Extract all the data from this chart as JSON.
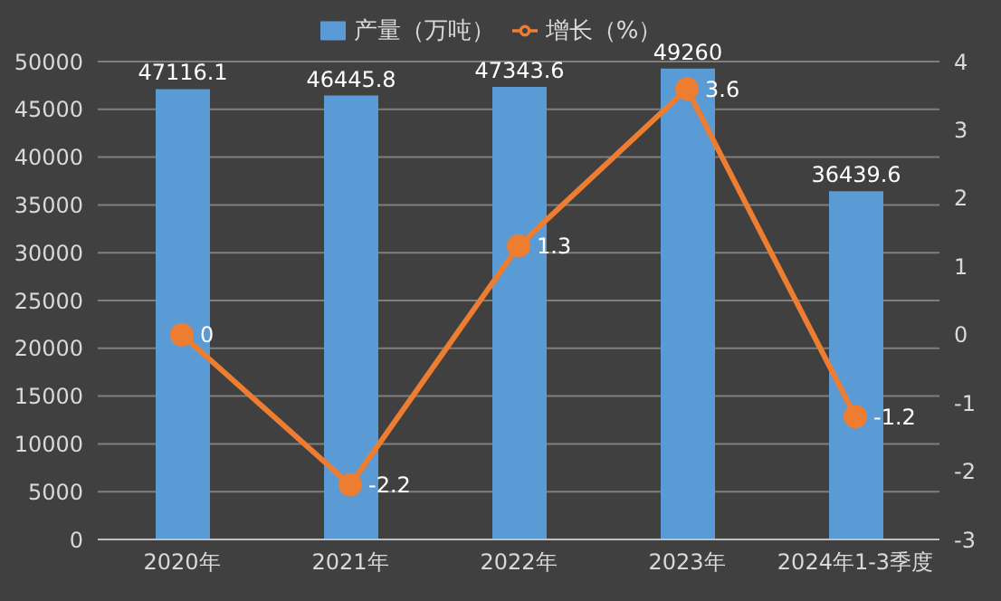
{
  "chart_data": {
    "type": "bar",
    "categories": [
      "2020年",
      "2021年",
      "2022年",
      "2023年",
      "2024年1-3季度"
    ],
    "series": [
      {
        "name": "产量（万吨）",
        "color": "#5b9bd5",
        "values": [
          47116.1,
          46445.8,
          47343.6,
          49260,
          36439.6
        ]
      },
      {
        "name": "增长（%）",
        "type": "line",
        "axis": "y2",
        "color": "#ed7d31",
        "values": [
          0,
          -2.2,
          1.3,
          3.6,
          -1.2
        ]
      }
    ],
    "ylim": [
      0,
      50000
    ],
    "yticks": [
      0,
      5000,
      10000,
      15000,
      20000,
      25000,
      30000,
      35000,
      40000,
      45000,
      50000
    ],
    "y2lim": [
      -3,
      4
    ],
    "y2ticks": [
      -3,
      -2,
      -1,
      0,
      1,
      2,
      3,
      4
    ],
    "grid": "y",
    "legend": "top",
    "marker": "circle",
    "data_labels": true
  }
}
